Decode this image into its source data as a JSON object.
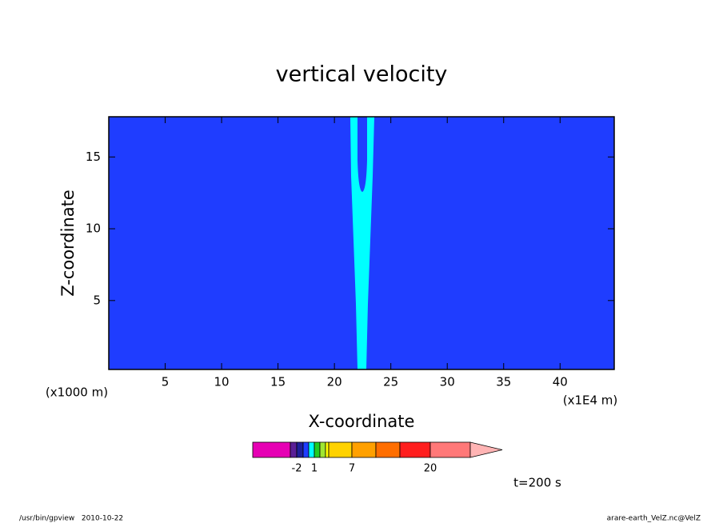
{
  "chart_data": {
    "type": "contour",
    "title": "vertical velocity",
    "x_label": "X-coordinate",
    "y_label": "Z-coordinate",
    "x_unit": "(x1E4 m)",
    "y_unit": "(x1000 m)",
    "xlim": [
      0,
      44.8
    ],
    "ylim": [
      0.2,
      17.8
    ],
    "xticks": [
      5,
      10,
      15,
      20,
      25,
      30,
      35,
      40
    ],
    "yticks": [
      5,
      10,
      15
    ],
    "background_color": "#1f3dff",
    "region_color": "#00ffff",
    "colorbar": {
      "colors": [
        "#e600b4",
        "#5a1e96",
        "#1e1e9a",
        "#1f3dff",
        "#00ffff",
        "#22cc22",
        "#a0e632",
        "#ffff00",
        "#ffd200",
        "#ffa000",
        "#ff6e00",
        "#ff1e1e",
        "#ff7878"
      ],
      "extend_color": "#ffb4b4",
      "boundaries": [
        null,
        -2,
        null,
        null,
        1,
        null,
        null,
        null,
        7,
        null,
        null,
        20,
        null
      ]
    },
    "time_label": "t=200 s",
    "footer_left": "/usr/bin/gpview   2010-10-22",
    "footer_right": "arare-earth_VelZ.nc@VelZ"
  }
}
